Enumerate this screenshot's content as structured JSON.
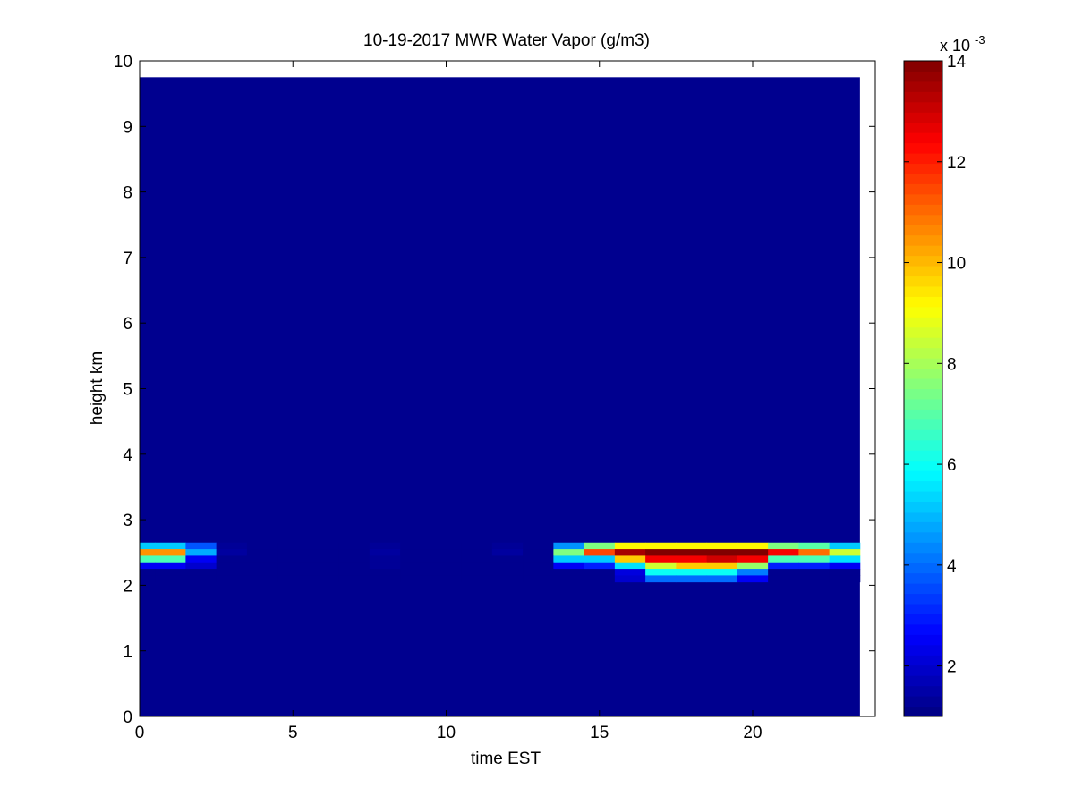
{
  "chart_data": {
    "type": "heatmap",
    "title": "10-19-2017 MWR Water Vapor (g/m3)",
    "xlabel": "time EST",
    "ylabel": "height km",
    "xlim": [
      0,
      24
    ],
    "ylim": [
      0,
      10
    ],
    "x_ticks": [
      "0",
      "5",
      "10",
      "15",
      "20"
    ],
    "y_ticks": [
      "0",
      "1",
      "2",
      "3",
      "4",
      "5",
      "6",
      "7",
      "8",
      "9",
      "10"
    ],
    "colorbar": {
      "colormap": "jet",
      "clim": [
        0.001,
        0.014
      ],
      "multiplier_label": "x 10",
      "multiplier_exponent": "-3",
      "ticks": [
        "2",
        "4",
        "6",
        "8",
        "10",
        "12",
        "14"
      ]
    },
    "background_value": 0.0012,
    "x_extent": [
      0,
      23.5
    ],
    "y_extent": [
      0,
      9.75
    ],
    "cell_height": 0.1,
    "hours": [
      0,
      1,
      2,
      3,
      4,
      5,
      6,
      7,
      8,
      9,
      10,
      11,
      12,
      13,
      14,
      15,
      16,
      17,
      18,
      19,
      20,
      21,
      22,
      23
    ],
    "heights": [
      2.6,
      2.5,
      2.4,
      2.3,
      2.2,
      2.1
    ],
    "values": [
      [
        0.0052,
        0.0052,
        0.0037,
        0.0013,
        0.0012,
        0.0012,
        0.0012,
        0.0012,
        0.0013,
        0.0012,
        0.0012,
        0.0012,
        0.0013,
        0.0012,
        0.0045,
        0.0075,
        0.0092,
        0.0092,
        0.0092,
        0.0092,
        0.0092,
        0.0075,
        0.007,
        0.0052
      ],
      [
        0.0105,
        0.0105,
        0.0048,
        0.0014,
        0.0012,
        0.0012,
        0.0012,
        0.0012,
        0.0014,
        0.0012,
        0.0012,
        0.0012,
        0.0014,
        0.0012,
        0.0075,
        0.0115,
        0.0135,
        0.014,
        0.014,
        0.014,
        0.014,
        0.0125,
        0.011,
        0.0085
      ],
      [
        0.0068,
        0.0068,
        0.0025,
        0.0012,
        0.0012,
        0.0012,
        0.0012,
        0.0012,
        0.0013,
        0.0012,
        0.0012,
        0.0012,
        0.0012,
        0.0012,
        0.0052,
        0.0052,
        0.0098,
        0.0125,
        0.0125,
        0.013,
        0.0125,
        0.0068,
        0.0068,
        0.0055
      ],
      [
        0.0025,
        0.0025,
        0.002,
        0.0012,
        0.0012,
        0.0012,
        0.0012,
        0.0012,
        0.0013,
        0.0012,
        0.0012,
        0.0012,
        0.0012,
        0.0012,
        0.0025,
        0.003,
        0.0055,
        0.0085,
        0.0098,
        0.0098,
        0.0078,
        0.003,
        0.003,
        0.0025
      ],
      [
        0.0012,
        0.0012,
        0.0012,
        0.0012,
        0.0012,
        0.0012,
        0.0012,
        0.0012,
        0.0012,
        0.0012,
        0.0012,
        0.0012,
        0.0012,
        0.0012,
        0.0012,
        0.0012,
        0.0022,
        0.006,
        0.006,
        0.006,
        0.0042,
        0.0012,
        0.0012,
        0.0012
      ],
      [
        0.0012,
        0.0012,
        0.0012,
        0.0012,
        0.0012,
        0.0012,
        0.0012,
        0.0012,
        0.0012,
        0.0012,
        0.0012,
        0.0012,
        0.0012,
        0.0012,
        0.0012,
        0.0012,
        0.002,
        0.004,
        0.004,
        0.004,
        0.0025,
        0.0012,
        0.0012,
        0.0012
      ]
    ]
  }
}
